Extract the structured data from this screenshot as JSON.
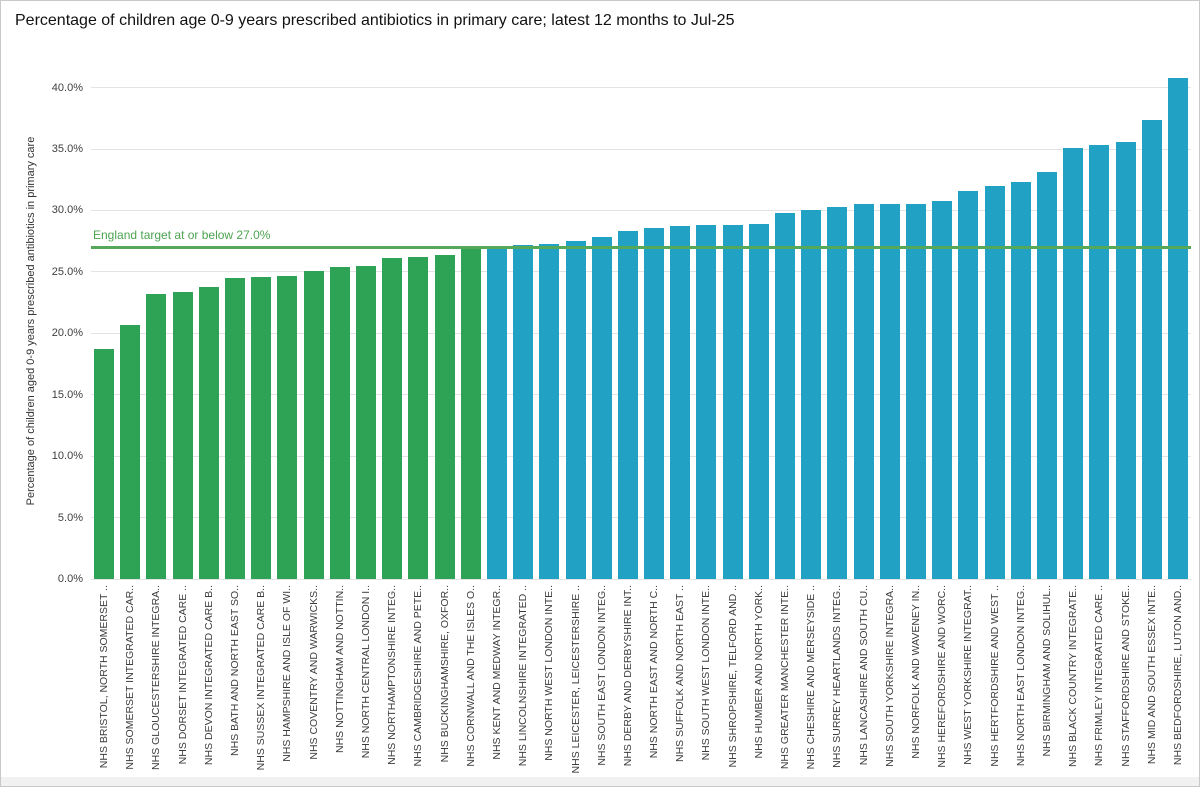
{
  "title": "Percentage of children age 0-9 years prescribed antibiotics in primary care; latest 12 months to Jul-25",
  "y_axis": {
    "title": "Percentage of children aged 0-9 years prescribed antibiotics in primary care",
    "tick_labels": [
      "0.0%",
      "5.0%",
      "10.0%",
      "15.0%",
      "20.0%",
      "25.0%",
      "30.0%",
      "35.0%",
      "40.0%"
    ]
  },
  "target": {
    "label": "England target at or below 27.0%",
    "value": 27.0
  },
  "colors": {
    "bar_at_or_below_target": "#2fa355",
    "bar_above_target": "#21a2c4",
    "target_line": "#55a759",
    "target_label_text": "#4da351",
    "gridline": "#e3e3e3"
  },
  "chart_data": {
    "type": "bar",
    "title": "Percentage of children age 0-9 years prescribed antibiotics in primary care; latest 12 months to Jul-25",
    "xlabel": "",
    "ylabel": "Percentage of children aged 0-9 years prescribed antibiotics in primary care",
    "ylim": [
      0,
      42
    ],
    "grid": true,
    "target_line": {
      "label": "England target at or below 27.0%",
      "value": 27.0
    },
    "categories": [
      "NHS BRISTOL, NORTH SOMERSET ..",
      "NHS SOMERSET INTEGRATED CAR..",
      "NHS GLOUCESTERSHIRE INTEGRA..",
      "NHS DORSET INTEGRATED CARE ..",
      "NHS DEVON INTEGRATED CARE B..",
      "NHS BATH AND NORTH EAST SO..",
      "NHS SUSSEX INTEGRATED CARE B..",
      "NHS HAMPSHIRE AND ISLE OF WI..",
      "NHS COVENTRY AND WARWICKS..",
      "NHS NOTTINGHAM AND NOTTIN..",
      "NHS NORTH CENTRAL LONDON I..",
      "NHS NORTHAMPTONSHIRE INTEG..",
      "NHS CAMBRIDGESHIRE AND PETE..",
      "NHS BUCKINGHAMSHIRE, OXFOR..",
      "NHS CORNWALL AND THE ISLES O..",
      "NHS KENT AND MEDWAY INTEGR..",
      "NHS LINCOLNSHIRE INTEGRATED ..",
      "NHS NORTH WEST LONDON INTE..",
      "NHS LEICESTER, LEICESTERSHIRE ..",
      "NHS SOUTH EAST LONDON INTEG..",
      "NHS DERBY AND DERBYSHIRE INT..",
      "NHS NORTH EAST AND NORTH C..",
      "NHS SUFFOLK AND NORTH EAST ..",
      "NHS SOUTH WEST LONDON INTE..",
      "NHS SHROPSHIRE, TELFORD AND ..",
      "NHS HUMBER AND NORTH YORK..",
      "NHS GREATER MANCHESTER INTE..",
      "NHS CHESHIRE AND MERSEYSIDE ..",
      "NHS SURREY HEARTLANDS INTEG..",
      "NHS LANCASHIRE AND SOUTH CU..",
      "NHS SOUTH YORKSHIRE INTEGRA..",
      "NHS NORFOLK AND WAVENEY IN..",
      "NHS HEREFORDSHIRE AND WORC..",
      "NHS WEST YORKSHIRE INTEGRAT..",
      "NHS HERTFORDSHIRE AND WEST ..",
      "NHS NORTH EAST LONDON INTEG..",
      "NHS BIRMINGHAM AND SOLIHUL..",
      "NHS BLACK COUNTRY INTEGRATE..",
      "NHS FRIMLEY INTEGRATED CARE ..",
      "NHS STAFFORDSHIRE AND STOKE..",
      "NHS MID AND SOUTH ESSEX INTE..",
      "NHS BEDFORDSHIRE, LUTON AND.."
    ],
    "values": [
      18.7,
      20.7,
      23.2,
      23.4,
      23.8,
      24.5,
      24.6,
      24.7,
      25.1,
      25.4,
      25.5,
      26.1,
      26.2,
      26.4,
      27.0,
      27.1,
      27.2,
      27.3,
      27.5,
      27.8,
      28.3,
      28.6,
      28.7,
      28.8,
      28.8,
      28.9,
      29.8,
      30.0,
      30.3,
      30.5,
      30.5,
      30.5,
      30.8,
      31.6,
      32.0,
      32.3,
      33.1,
      35.1,
      35.3,
      35.6,
      37.4,
      40.8
    ]
  }
}
